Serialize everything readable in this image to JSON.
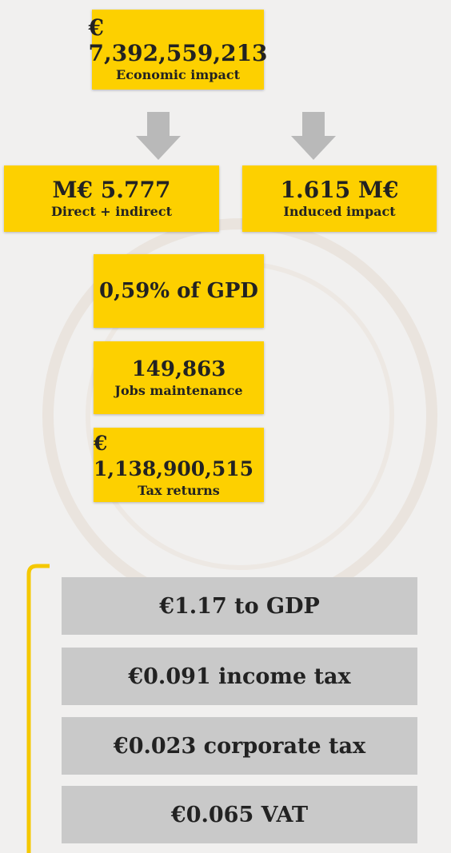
{
  "top": {
    "value": "€ 7,392,559,213",
    "label": "Economic impact"
  },
  "split": [
    {
      "value": "M€ 5.777",
      "label": "Direct + indirect"
    },
    {
      "value": "1.615 M€",
      "label": "Induced impact"
    }
  ],
  "gdp_share": "0,59% of GPD",
  "jobs": {
    "value": "149,863",
    "label": "Jobs maintenance"
  },
  "tax": {
    "value": "€ 1,138,900,515",
    "label": "Tax returns"
  },
  "per_euro": [
    "€1.17 to GDP",
    "€0.091 income tax",
    "€0.023 corporate tax",
    "€0.065 VAT"
  ]
}
